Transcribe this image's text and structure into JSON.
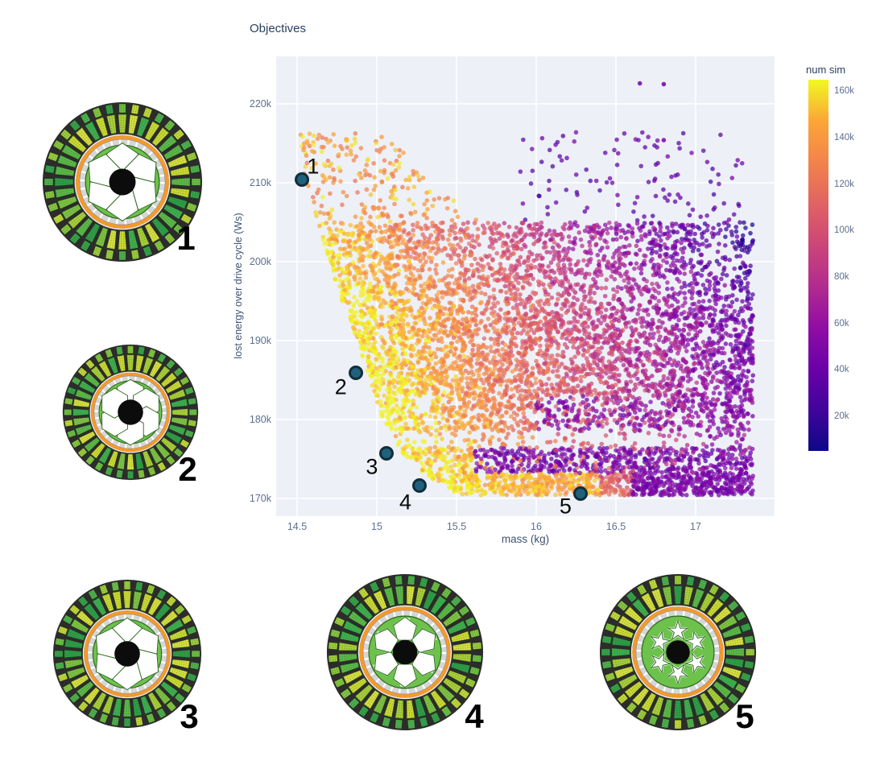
{
  "chart": {
    "title": "Objectives",
    "x_axis": {
      "label": "mass (kg)",
      "tick_labels": [
        "14.5",
        "15",
        "15.5",
        "16",
        "16.5",
        "17"
      ],
      "tick_values": [
        14.5,
        15,
        15.5,
        16,
        16.5,
        17
      ],
      "range": [
        14.37,
        17.49
      ]
    },
    "y_axis": {
      "label": "lost energy over drive cycle (Ws)",
      "tick_labels": [
        "220k",
        "210k",
        "200k",
        "190k",
        "180k",
        "170k"
      ],
      "tick_values": [
        220000,
        210000,
        200000,
        190000,
        180000,
        170000
      ],
      "range": [
        167800,
        226000
      ]
    },
    "colorbar": {
      "title": "num sim",
      "tick_labels": [
        "160k",
        "140k",
        "120k",
        "100k",
        "80k",
        "60k",
        "40k",
        "20k"
      ],
      "tick_values": [
        160000,
        140000,
        120000,
        100000,
        80000,
        60000,
        40000,
        20000
      ],
      "domain": [
        5000,
        165000
      ],
      "colormap": "plasma",
      "stops": [
        [
          0.0,
          "#0d0887"
        ],
        [
          0.11,
          "#41049d"
        ],
        [
          0.22,
          "#6a00a8"
        ],
        [
          0.33,
          "#8f0da4"
        ],
        [
          0.44,
          "#b12a90"
        ],
        [
          0.56,
          "#cc4778"
        ],
        [
          0.67,
          "#e16462"
        ],
        [
          0.78,
          "#f2844b"
        ],
        [
          0.89,
          "#fca636"
        ],
        [
          1.0,
          "#f0f921"
        ]
      ]
    }
  },
  "chart_data": {
    "type": "scatter",
    "title": "Objectives",
    "xlabel": "mass (kg)",
    "ylabel": "lost energy over drive cycle (Ws)",
    "color_label": "num sim",
    "xlim": [
      14.37,
      17.49
    ],
    "ylim": [
      167800,
      226000
    ],
    "legend_position": "colorbar-right",
    "grid": true,
    "description": "Dense multi-objective optimization result cloud (~tens of thousands of motor designs). Points colored by number of simulations (plasma colormap): yellow (~160k sims) along the Pareto front at low mass / low lost energy, fading through orange and pink to purple (~20k sims) toward high mass. Five Pareto-optimal designs are highlighted with dark teal markers numbered 1-5.",
    "highlighted_points": [
      {
        "label": "1",
        "mass": 14.53,
        "lost_energy": 210400
      },
      {
        "label": "2",
        "mass": 14.87,
        "lost_energy": 185900
      },
      {
        "label": "3",
        "mass": 15.06,
        "lost_energy": 175700
      },
      {
        "label": "4",
        "mass": 15.27,
        "lost_energy": 171600
      },
      {
        "label": "5",
        "mass": 16.28,
        "lost_energy": 170600
      }
    ],
    "outliers": [
      {
        "mass": 16.65,
        "lost_energy": 222600,
        "num_sim": 40000
      },
      {
        "mass": 16.8,
        "lost_energy": 222500,
        "num_sim": 38000
      },
      {
        "mass": 16.8,
        "lost_energy": 215400,
        "num_sim": 42000
      }
    ],
    "cloud": {
      "n_points": 7200,
      "seed": 42,
      "marker_radius": 2.8,
      "marker_opacity": 0.72,
      "x_max": 17.36,
      "front_curve": [
        [
          216.5,
          14.52
        ],
        [
          210,
          14.55
        ],
        [
          197,
          14.75
        ],
        [
          188,
          14.91
        ],
        [
          181,
          15.02
        ],
        [
          176,
          15.15
        ],
        [
          172.5,
          15.33
        ],
        [
          170.3,
          15.5
        ]
      ],
      "bands": [
        {
          "name": "top-sparse",
          "v": [
            205,
            216.5
          ],
          "weight": 0.045,
          "skew": 1.3,
          "keep": 1.0
        },
        {
          "name": "upper-main",
          "v": [
            194,
            205
          ],
          "weight": 0.26,
          "skew": 1.15,
          "keep": 1.0
        },
        {
          "name": "mid-main",
          "v": [
            183,
            194
          ],
          "weight": 0.34,
          "skew": 1.1,
          "keep": 1.0
        },
        {
          "name": "stripe-upper",
          "v": [
            178.5,
            183
          ],
          "weight": 0.115,
          "skew": 1.1,
          "keep": 1.0
        },
        {
          "name": "gap",
          "v": [
            176.4,
            178.5
          ],
          "weight": 0.03,
          "skew": 1.0,
          "keep": 0.5
        },
        {
          "name": "stripe-lower",
          "v": [
            173.2,
            176.4
          ],
          "weight": 0.095,
          "skew": 1.0,
          "keep": 1.0
        },
        {
          "name": "bottom-edge",
          "v": [
            170.4,
            173.2
          ],
          "weight": 0.115,
          "skew": 0.95,
          "keep": 1.0
        }
      ],
      "num_sim_model": "num_sim_k = 166 - (mass - pareto_front(v))*52 - max(0, v_k-194)*1.2 + noise*26, clamped to [6,164]; forced purple stripes at 173.2-176.4k and 178.5-183k for mass > ~15.6-16"
    }
  },
  "motors": [
    {
      "label": "1",
      "design": {
        "rotor_hole_shape": "rounded-pentagon-large",
        "hole_count": 6,
        "rings_outer_to_inner": [
          "black-housing",
          "winding-slots",
          "orange-magnet-ring",
          "gray-segmented-ring",
          "green-rotor",
          "black-shaft"
        ]
      }
    },
    {
      "label": "2",
      "design": {
        "rotor_hole_shape": "rounded-hexagon",
        "hole_count": 6,
        "rings_outer_to_inner": [
          "black-housing",
          "winding-slots",
          "orange-magnet-ring",
          "gray-segmented-ring",
          "green-rotor",
          "black-shaft"
        ]
      }
    },
    {
      "label": "3",
      "design": {
        "rotor_hole_shape": "rounded-pentagon-large",
        "hole_count": 6,
        "rings_outer_to_inner": [
          "black-housing",
          "winding-slots",
          "orange-magnet-ring",
          "gray-segmented-ring",
          "green-rotor",
          "black-shaft"
        ]
      }
    },
    {
      "label": "4",
      "design": {
        "rotor_hole_shape": "rounded-pentagon-small",
        "hole_count": 6,
        "rings_outer_to_inner": [
          "black-housing",
          "winding-slots",
          "orange-magnet-ring",
          "gray-segmented-ring",
          "green-rotor",
          "black-shaft"
        ]
      }
    },
    {
      "label": "5",
      "design": {
        "rotor_hole_shape": "star-clover",
        "hole_count": 6,
        "rings_outer_to_inner": [
          "black-housing",
          "winding-slots",
          "orange-magnet-ring",
          "gray-segmented-ring",
          "green-rotor",
          "black-shaft"
        ]
      }
    }
  ],
  "colors": {
    "plot_background": "#edf0f6",
    "gridline": "#ffffff",
    "highlight_fill": "#20617c",
    "highlight_stroke": "#112e3b",
    "rotor_green": "#6dc24b",
    "magnet_orange": "#f49a2b"
  }
}
